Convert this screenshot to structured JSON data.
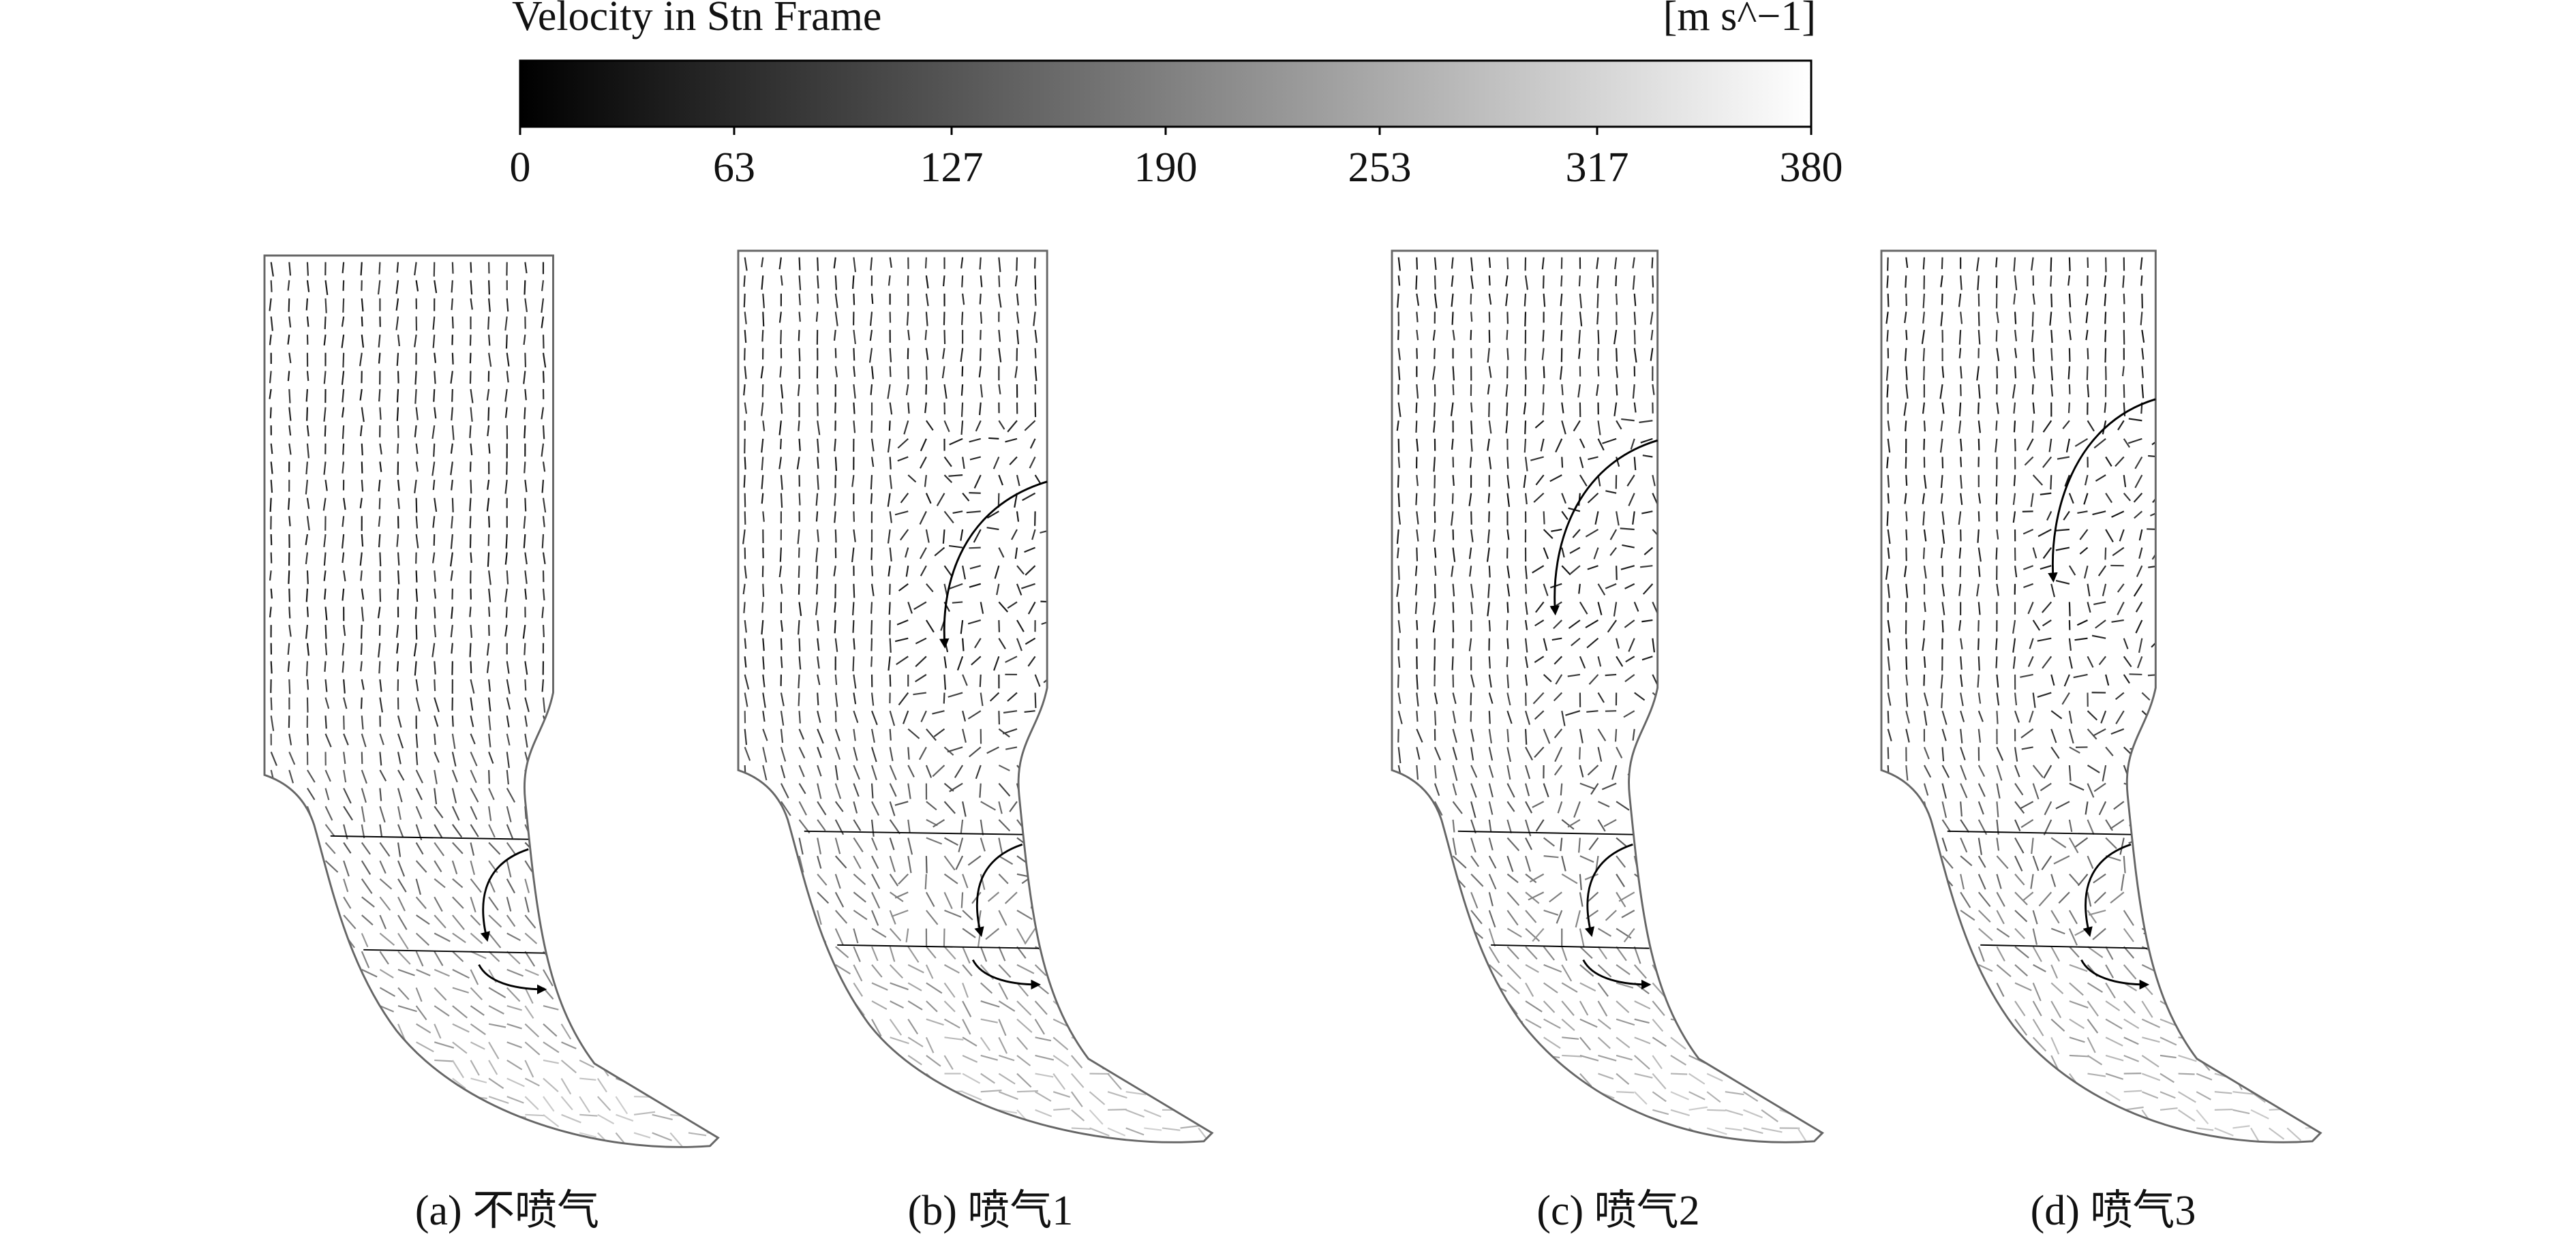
{
  "colorbar": {
    "title": "Velocity in Stn Frame",
    "unit": "[m s^−1]",
    "range": [
      0,
      380
    ],
    "ticks": [
      0,
      63,
      127,
      190,
      253,
      317,
      380
    ]
  },
  "panels": [
    {
      "caption": "(a) 不喷气"
    },
    {
      "caption": "(b) 喷气1"
    },
    {
      "caption": "(c) 喷气2"
    },
    {
      "caption": "(d) 喷气3"
    }
  ]
}
